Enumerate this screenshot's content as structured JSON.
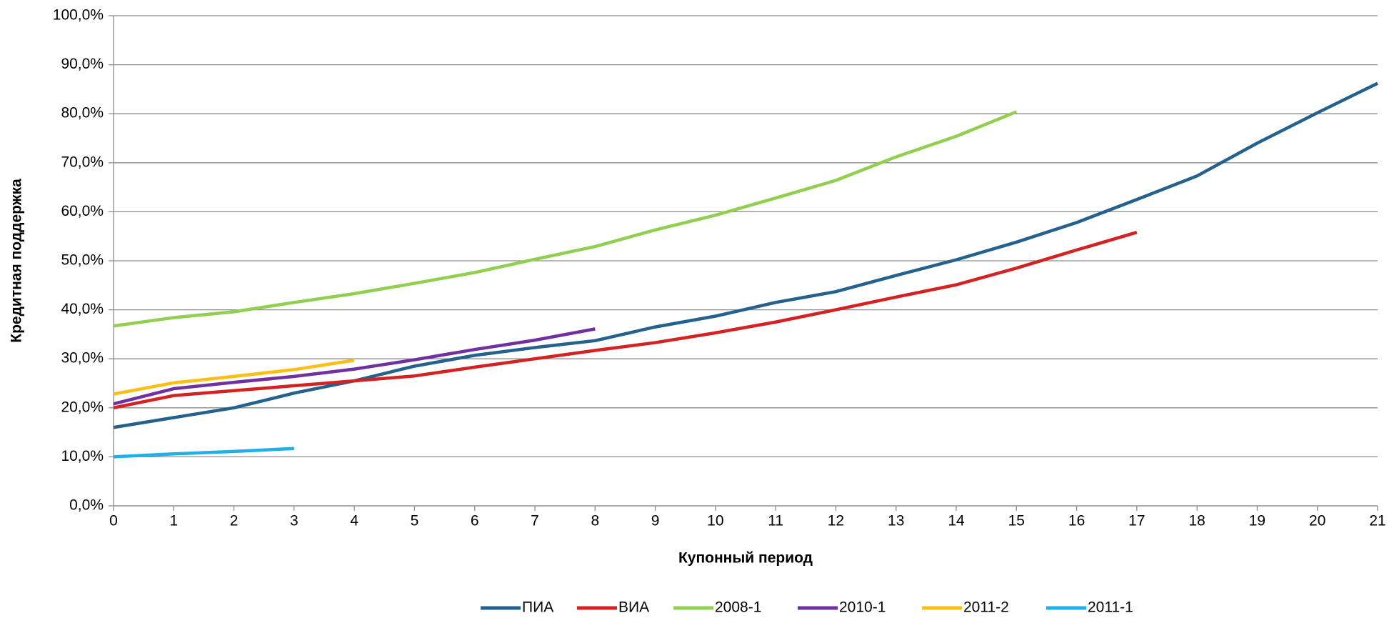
{
  "chart_data": {
    "type": "line",
    "x_label": "Купонный период",
    "y_label": "Кредитная поддержка",
    "x": [
      0,
      1,
      2,
      3,
      4,
      5,
      6,
      7,
      8,
      9,
      10,
      11,
      12,
      13,
      14,
      15,
      16,
      17,
      18,
      19,
      20,
      21
    ],
    "series": [
      {
        "name": "ПИА",
        "color": "#24618c",
        "values": [
          16.0,
          18.0,
          20.0,
          23.0,
          25.5,
          28.5,
          30.7,
          32.3,
          33.7,
          36.5,
          38.7,
          41.5,
          43.7,
          47.0,
          50.2,
          53.8,
          57.8,
          62.5,
          67.3,
          74.0,
          80.2,
          86.2
        ]
      },
      {
        "name": "ВИА",
        "color": "#d42222",
        "values": [
          20.0,
          22.5,
          23.5,
          24.5,
          25.5,
          26.5,
          28.3,
          30.0,
          31.7,
          33.3,
          35.3,
          37.5,
          40.0,
          42.6,
          45.1,
          48.5,
          52.2,
          55.8,
          null,
          null,
          null,
          null
        ]
      },
      {
        "name": "2008-1",
        "color": "#92cf50",
        "values": [
          36.7,
          38.4,
          39.6,
          41.5,
          43.3,
          45.4,
          47.6,
          50.3,
          52.9,
          56.3,
          59.3,
          62.8,
          66.4,
          71.2,
          75.4,
          80.4,
          null,
          null,
          null,
          null,
          null,
          null
        ]
      },
      {
        "name": "2010-1",
        "color": "#7030a0",
        "values": [
          20.8,
          23.9,
          25.2,
          26.4,
          27.9,
          29.8,
          31.9,
          33.8,
          36.1,
          null,
          null,
          null,
          null,
          null,
          null,
          null,
          null,
          null,
          null,
          null,
          null,
          null
        ]
      },
      {
        "name": "2011-2",
        "color": "#fcbf16",
        "values": [
          22.8,
          25.1,
          26.4,
          27.8,
          29.7,
          null,
          null,
          null,
          null,
          null,
          null,
          null,
          null,
          null,
          null,
          null,
          null,
          null,
          null,
          null,
          null,
          null
        ]
      },
      {
        "name": "2011-1",
        "color": "#1fb0e8",
        "values": [
          10.0,
          10.6,
          11.1,
          11.7,
          null,
          null,
          null,
          null,
          null,
          null,
          null,
          null,
          null,
          null,
          null,
          null,
          null,
          null,
          null,
          null,
          null,
          null
        ]
      }
    ],
    "xlim": [
      0,
      21
    ],
    "xticks": [
      0,
      1,
      2,
      3,
      4,
      5,
      6,
      7,
      8,
      9,
      10,
      11,
      12,
      13,
      14,
      15,
      16,
      17,
      18,
      19,
      20,
      21
    ],
    "ylim": [
      0,
      100
    ],
    "yticks": [
      {
        "value": 0,
        "label": "0,0%"
      },
      {
        "value": 10,
        "label": "10,0%"
      },
      {
        "value": 20,
        "label": "20,0%"
      },
      {
        "value": 30,
        "label": "30,0%"
      },
      {
        "value": 40,
        "label": "40,0%"
      },
      {
        "value": 50,
        "label": "50,0%"
      },
      {
        "value": 60,
        "label": "60,0%"
      },
      {
        "value": 70,
        "label": "70,0%"
      },
      {
        "value": 80,
        "label": "80,0%"
      },
      {
        "value": 90,
        "label": "90,0%"
      },
      {
        "value": 100,
        "label": "100,0%"
      }
    ],
    "grid": true,
    "legend": "bottom"
  }
}
